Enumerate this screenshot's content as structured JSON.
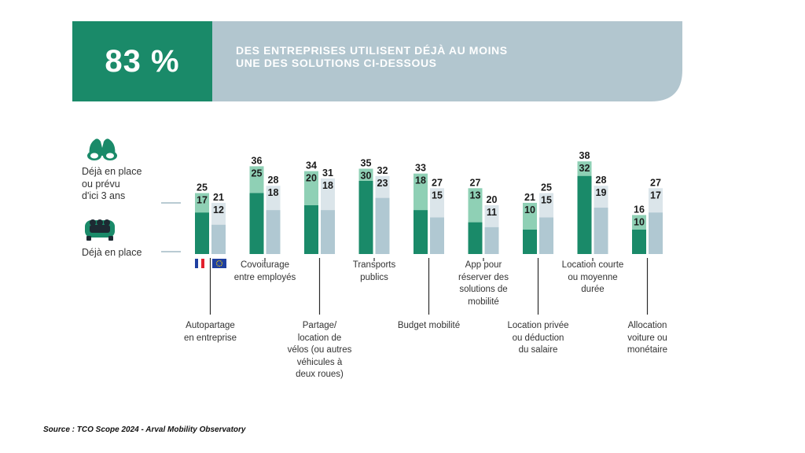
{
  "header": {
    "percentage": "83 %",
    "line1": "DES ENTREPRISES UTILISENT DÉJÀ AU MOINS",
    "line2": "UNE DES SOLUTIONS CI-DESSOUS"
  },
  "legend": {
    "planned_lines": [
      "Déjà en place",
      "ou prévu",
      "d'ici 3 ans"
    ],
    "in_place": "Déjà en place"
  },
  "source": "Source : TCO Scope 2024 - Arval Mobility Observatory",
  "colors": {
    "green_dark": "#1a8a69",
    "green_light": "#8fd0b5",
    "blue_dark": "#b0c8d2",
    "blue_light": "#dbe5ea",
    "banner_grey": "#b2c6cf"
  },
  "chart_data": {
    "type": "bar",
    "title": "83 % des entreprises utilisent déjà au moins une des solutions ci-dessous",
    "series_info": [
      {
        "name": "Déjà en place ou prévu d'ici 3 ans",
        "role": "total"
      },
      {
        "name": "Déjà en place",
        "role": "in_place"
      }
    ],
    "regions": [
      "France",
      "Europe"
    ],
    "categories": [
      {
        "label_lines": [
          "Autopartage",
          "en entreprise"
        ],
        "label_pos": "below",
        "france": {
          "total": 25,
          "in_place": 17
        },
        "europe": {
          "total": 21,
          "in_place": 12
        }
      },
      {
        "label_lines": [
          "Covoiturage",
          "entre employés"
        ],
        "label_pos": "above",
        "france": {
          "total": 36,
          "in_place": 25
        },
        "europe": {
          "total": 28,
          "in_place": 18
        }
      },
      {
        "label_lines": [
          "Partage/",
          "location de",
          "vélos (ou autres",
          "véhicules à",
          "deux roues)"
        ],
        "label_pos": "below",
        "france": {
          "total": 34,
          "in_place": 20
        },
        "europe": {
          "total": 31,
          "in_place": 18
        }
      },
      {
        "label_lines": [
          "Transports",
          "publics"
        ],
        "label_pos": "above",
        "france": {
          "total": 35,
          "in_place": 30
        },
        "europe": {
          "total": 32,
          "in_place": 23
        }
      },
      {
        "label_lines": [
          "Budget mobilité"
        ],
        "label_pos": "below",
        "france": {
          "total": 33,
          "in_place": 18
        },
        "europe": {
          "total": 27,
          "in_place": 15
        }
      },
      {
        "label_lines": [
          "App pour",
          "réserver des",
          "solutions de",
          "mobilité"
        ],
        "label_pos": "above",
        "france": {
          "total": 27,
          "in_place": 13
        },
        "europe": {
          "total": 20,
          "in_place": 11
        }
      },
      {
        "label_lines": [
          "Location privée",
          "ou déduction",
          "du salaire"
        ],
        "label_pos": "below",
        "france": {
          "total": 21,
          "in_place": 10
        },
        "europe": {
          "total": 25,
          "in_place": 15
        }
      },
      {
        "label_lines": [
          "Location courte",
          "ou moyenne",
          "durée"
        ],
        "label_pos": "above",
        "france": {
          "total": 38,
          "in_place": 32
        },
        "europe": {
          "total": 28,
          "in_place": 19
        }
      },
      {
        "label_lines": [
          "Allocation",
          "voiture ou",
          "monétaire"
        ],
        "label_pos": "below",
        "france": {
          "total": 16,
          "in_place": 10
        },
        "europe": {
          "total": 27,
          "in_place": 17
        }
      }
    ],
    "ylim": [
      0,
      40
    ],
    "xlabel": "",
    "ylabel": ""
  }
}
